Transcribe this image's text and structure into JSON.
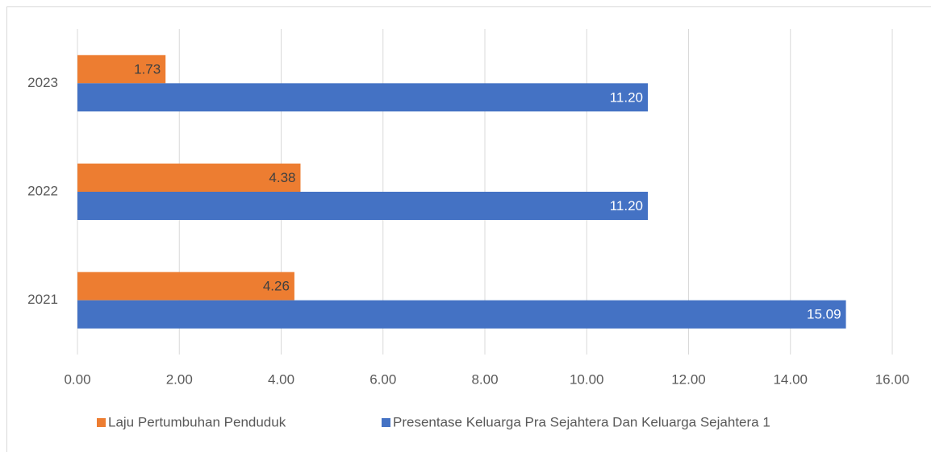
{
  "chart_data": {
    "type": "barh",
    "categories": [
      "2021",
      "2022",
      "2023"
    ],
    "series": [
      {
        "name": "Laju Pertumbuhan Penduduk",
        "color": "#ed7d31",
        "values": [
          4.26,
          4.38,
          1.73
        ],
        "value_labels": [
          "4.26",
          "4.38",
          "1.73"
        ]
      },
      {
        "name": "Presentase Keluarga Pra Sejahtera Dan Keluarga Sejahtera 1",
        "color": "#4472c4",
        "values": [
          15.09,
          11.2,
          11.2
        ],
        "value_labels": [
          "15.09",
          "11.20",
          "11.20"
        ]
      }
    ],
    "xlim": [
      0,
      16
    ],
    "xticks": [
      {
        "value": 0,
        "label": "0.00"
      },
      {
        "value": 2,
        "label": "2.00"
      },
      {
        "value": 4,
        "label": "4.00"
      },
      {
        "value": 6,
        "label": "6.00"
      },
      {
        "value": 8,
        "label": "8.00"
      },
      {
        "value": 10,
        "label": "10.00"
      },
      {
        "value": 12,
        "label": "12.00"
      },
      {
        "value": 14,
        "label": "14.00"
      },
      {
        "value": 16,
        "label": "16.00"
      }
    ],
    "grid": true,
    "legend": "bottom"
  }
}
